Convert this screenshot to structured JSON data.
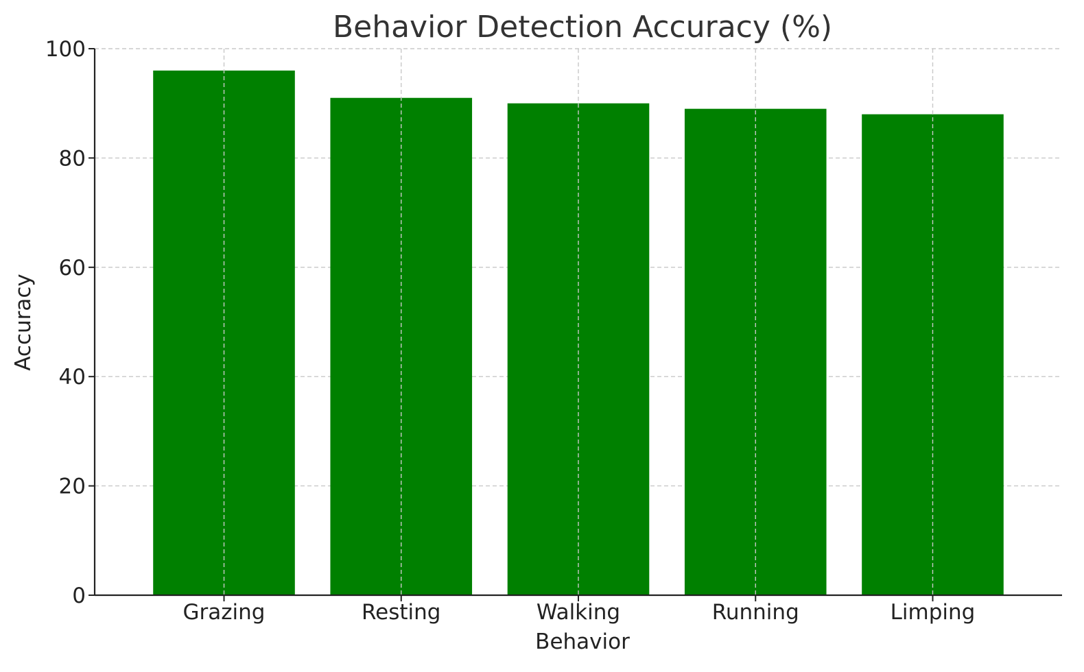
{
  "chart_data": {
    "type": "bar",
    "title": "Behavior Detection Accuracy (%)",
    "xlabel": "Behavior",
    "ylabel": "Accuracy",
    "categories": [
      "Grazing",
      "Resting",
      "Walking",
      "Running",
      "Limping"
    ],
    "values": [
      96,
      91,
      90,
      89,
      88
    ],
    "ylim": [
      0,
      100
    ],
    "yticks": [
      0,
      20,
      40,
      60,
      80,
      100
    ],
    "grid": true,
    "bar_color": "#008000"
  }
}
